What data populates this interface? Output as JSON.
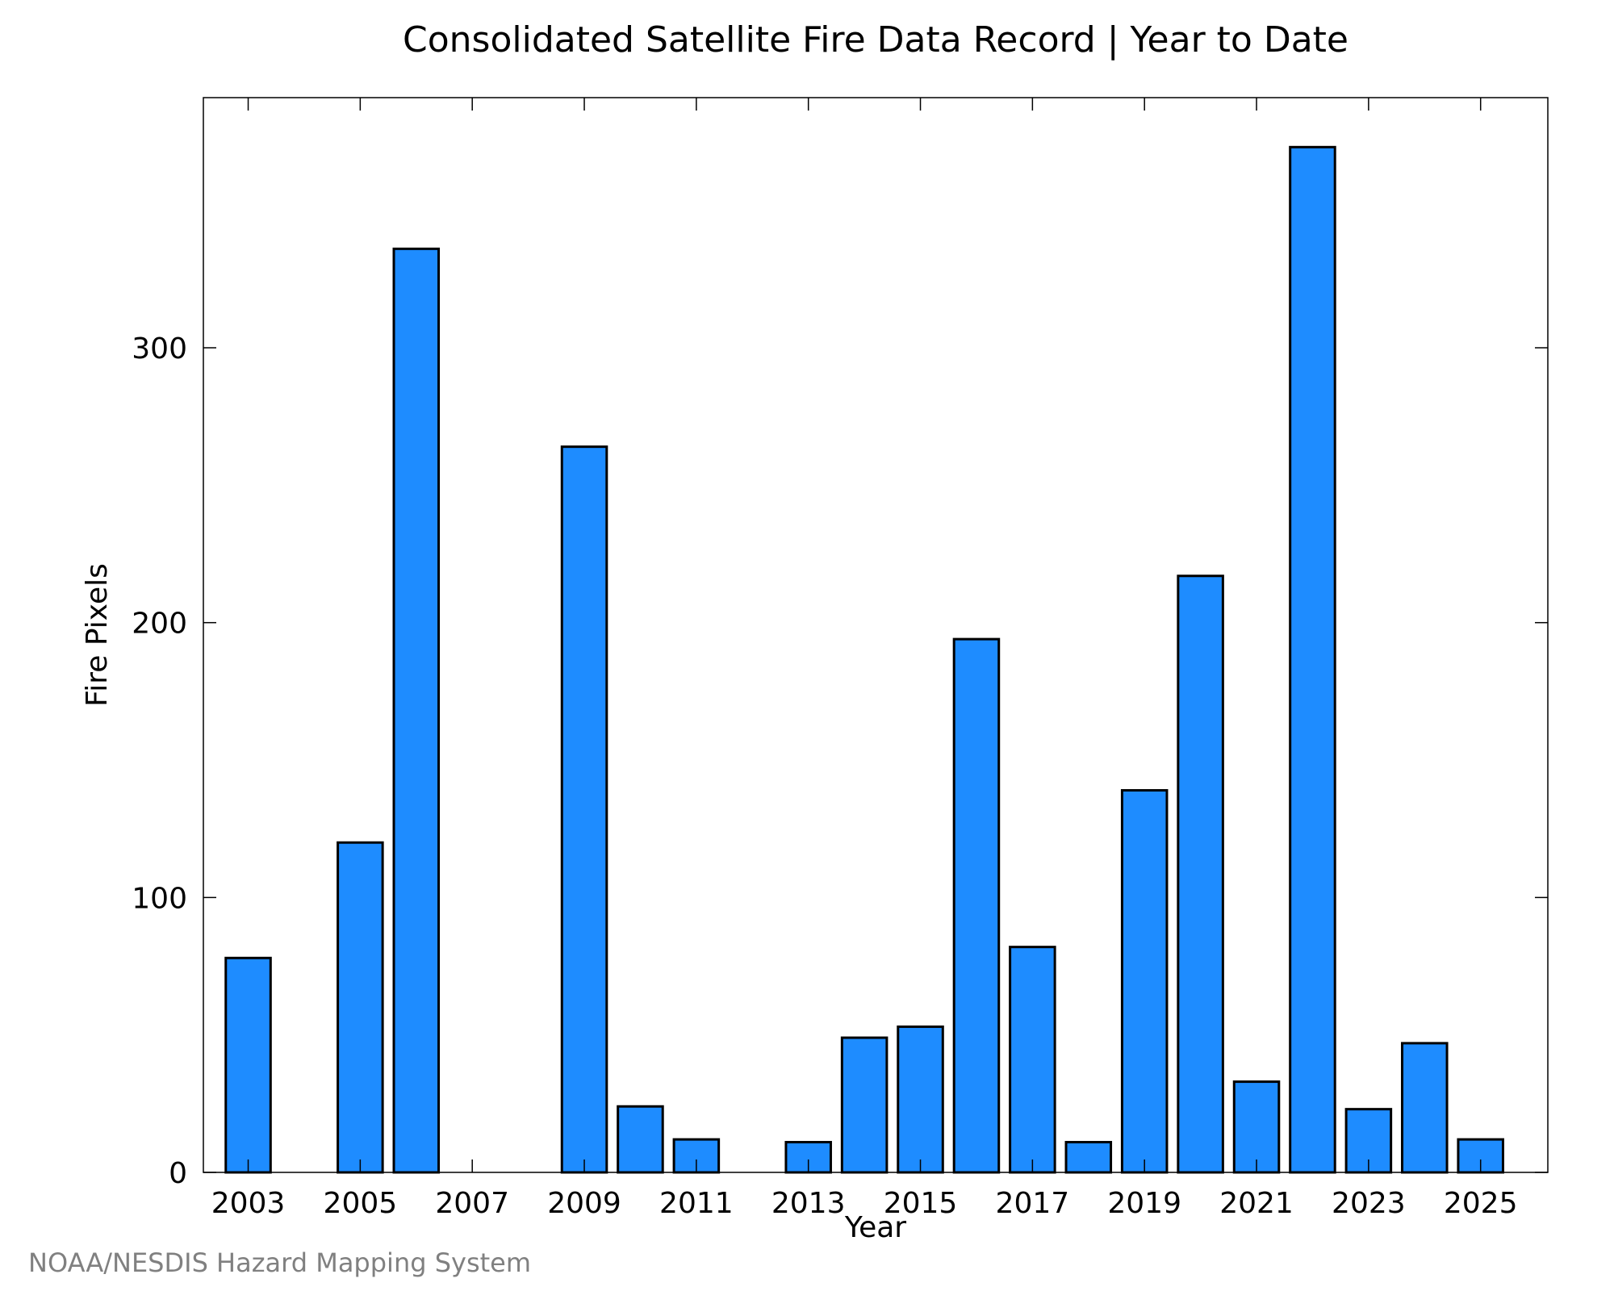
{
  "chart_data": {
    "type": "bar",
    "title": "Consolidated Satellite Fire Data Record | Year to Date",
    "xlabel": "Year",
    "ylabel": "Fire Pixels",
    "categories": [
      "2003",
      "2004",
      "2005",
      "2006",
      "2007",
      "2008",
      "2009",
      "2010",
      "2011",
      "2012",
      "2013",
      "2014",
      "2015",
      "2016",
      "2017",
      "2018",
      "2019",
      "2020",
      "2021",
      "2022",
      "2023",
      "2024",
      "2025"
    ],
    "x_tick_labels": [
      "2003",
      "2005",
      "2007",
      "2009",
      "2011",
      "2013",
      "2015",
      "2017",
      "2019",
      "2021",
      "2023",
      "2025"
    ],
    "y_ticks": [
      0,
      100,
      200,
      300
    ],
    "values": [
      78,
      0,
      120,
      336,
      0,
      0,
      264,
      24,
      12,
      0,
      11,
      49,
      53,
      194,
      82,
      11,
      139,
      217,
      33,
      373,
      23,
      47,
      12
    ],
    "ylim": [
      0,
      391
    ],
    "xlim": [
      2002.2,
      2026.2
    ],
    "bar_color": "#1e8cff",
    "edge_color": "#000000",
    "grid": false,
    "legend": "none"
  },
  "credit": "NOAA/NESDIS Hazard Mapping System"
}
